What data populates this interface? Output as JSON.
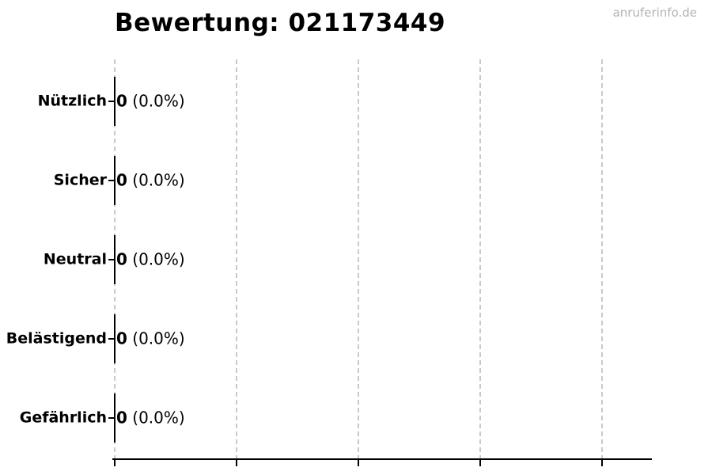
{
  "watermark": "anruferinfo.de",
  "colors": {
    "background": "#ffffff",
    "text": "#000000",
    "grid": "#c9c9c9",
    "axis": "#000000",
    "watermark": "#b3b3b3"
  },
  "chart_data": {
    "type": "bar",
    "orientation": "horizontal",
    "title": "Bewertung: 021173449",
    "categories": [
      "Nützlich",
      "Sicher",
      "Neutral",
      "Belästigend",
      "Gefährlich"
    ],
    "values": [
      0,
      0,
      0,
      0,
      0
    ],
    "counts": [
      0,
      0,
      0,
      0,
      0
    ],
    "percents": [
      "0.0%",
      "0.0%",
      "0.0%",
      "0.0%",
      "0.0%"
    ],
    "value_label_format": "count (percent)",
    "xlabel": "",
    "ylabel": "",
    "xlim": [
      0,
      4.4
    ],
    "x_gridline_values": [
      0,
      1,
      2,
      3,
      4
    ],
    "x_tick_labels": [],
    "grid": "vertical-dashed",
    "legend": "none"
  }
}
